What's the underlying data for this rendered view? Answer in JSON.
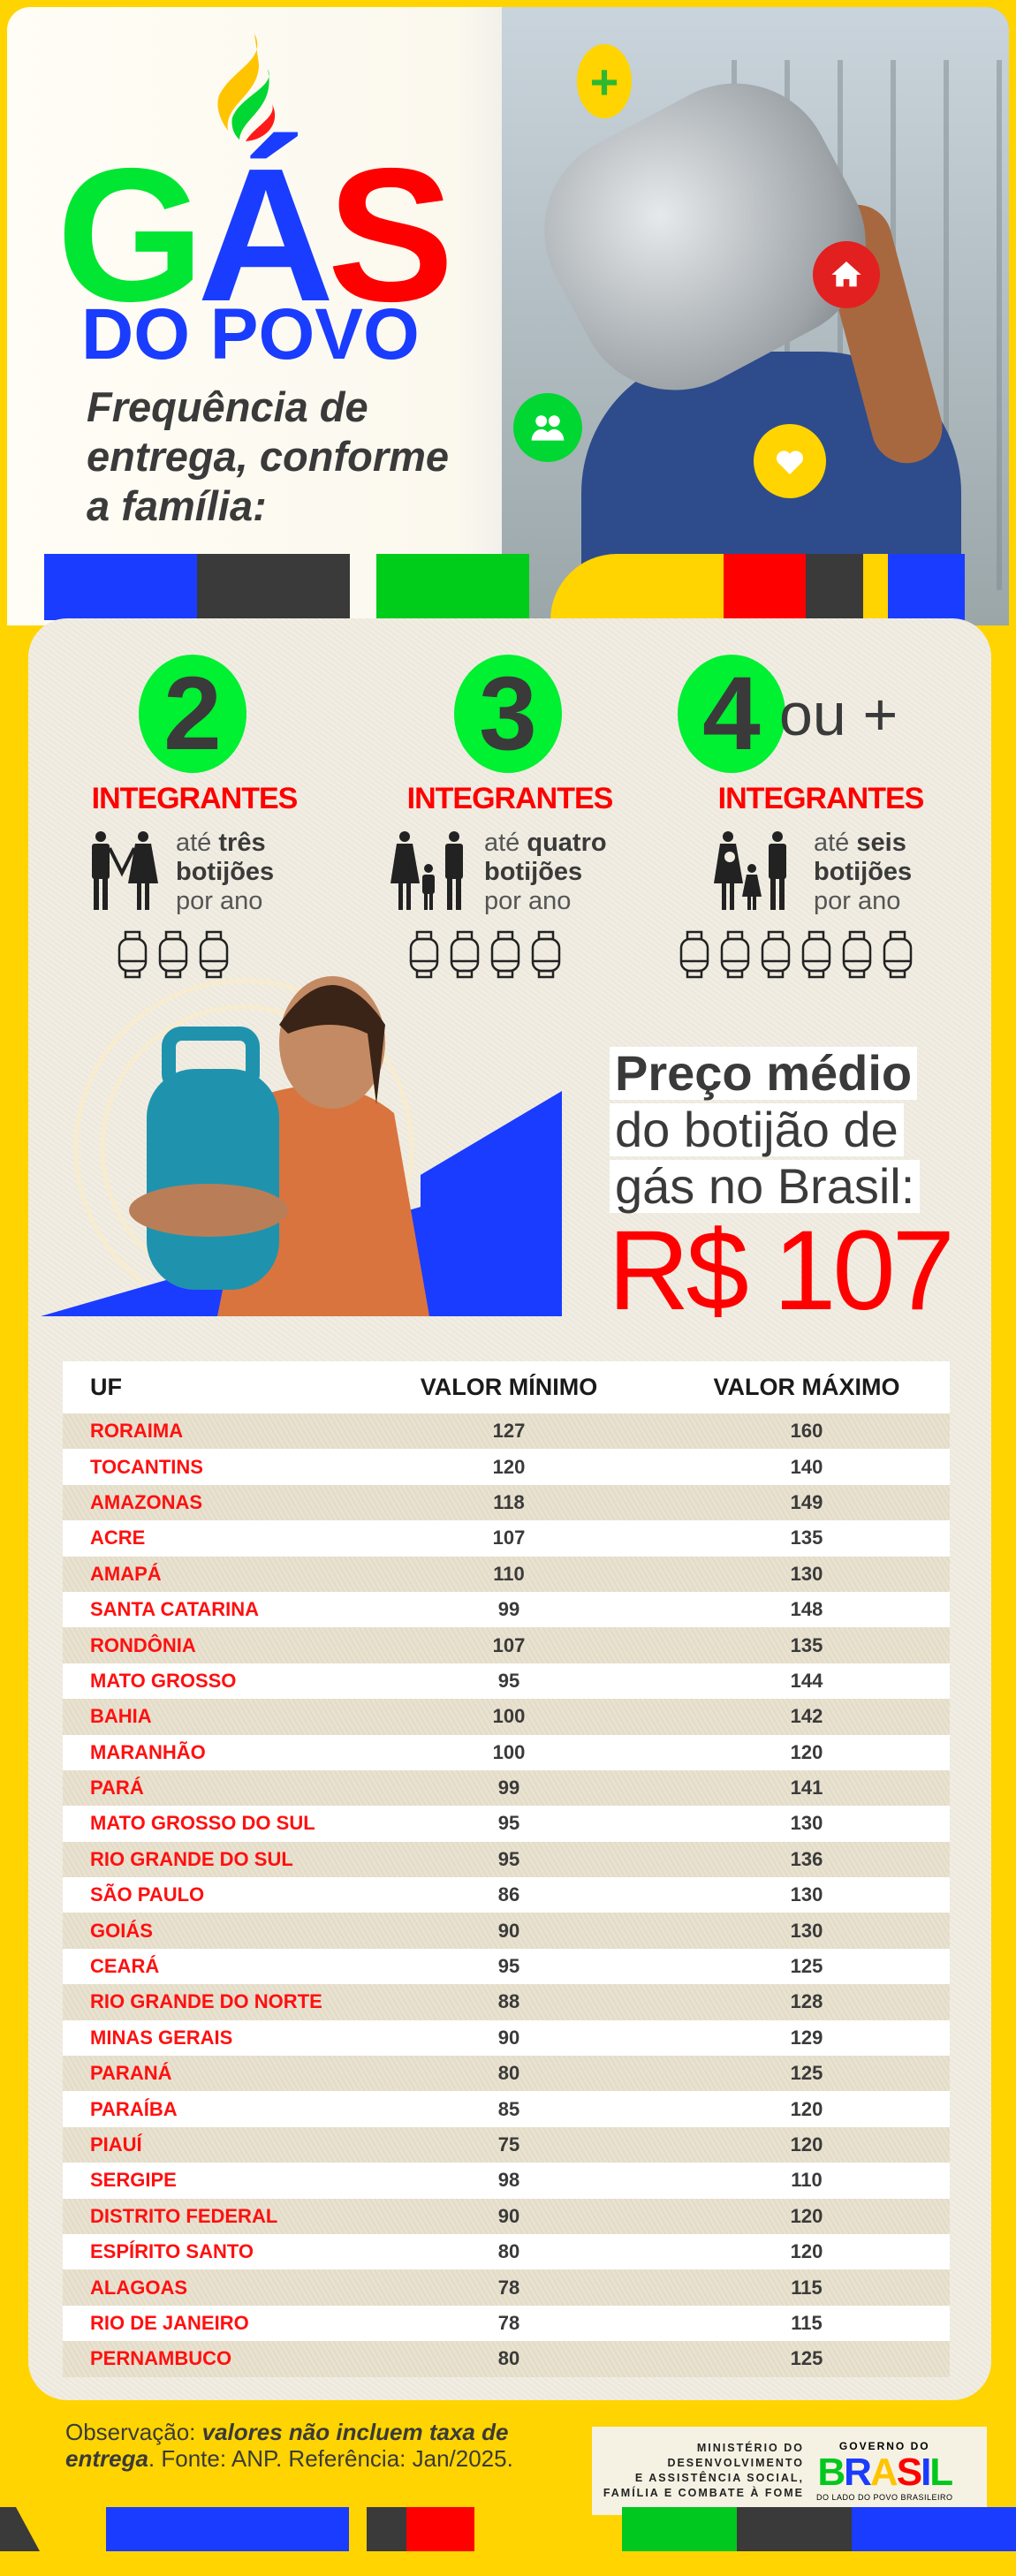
{
  "header": {
    "logo_gas": [
      "G",
      "Á",
      "S"
    ],
    "logo_dopovo": "DO POVO",
    "subtitle_lines": [
      "Frequência de",
      "entrega, conforme",
      "a família:"
    ],
    "badge_icons": [
      "plus-icon",
      "house-icon",
      "people-icon",
      "heart-icon"
    ]
  },
  "colors": {
    "green": "#00f032",
    "blue": "#1a3cff",
    "red": "#ff0000",
    "yellow": "#ffd400",
    "dark": "#3a3a3a"
  },
  "tiers": [
    {
      "number": "2",
      "suffix": "",
      "label": "INTEGRANTES",
      "text_pre": "até ",
      "text_bold": "três",
      "text_bold2": "botijões",
      "text_post": "por ano",
      "cylinders": 3
    },
    {
      "number": "3",
      "suffix": "",
      "label": "INTEGRANTES",
      "text_pre": "até ",
      "text_bold": "quatro",
      "text_bold2": "botijões",
      "text_post": "por ano",
      "cylinders": 4
    },
    {
      "number": "4",
      "suffix": "ou +",
      "label": "INTEGRANTES",
      "text_pre": "até ",
      "text_bold": "seis",
      "text_bold2": "botijões",
      "text_post": "por ano",
      "cylinders": 6
    }
  ],
  "price": {
    "lines": [
      "Preço médio",
      "do botijão de",
      "gás no Brasil:"
    ],
    "value": "R$ 107"
  },
  "table": {
    "headers": [
      "UF",
      "VALOR MÍNIMO",
      "VALOR MÁXIMO"
    ],
    "rows": [
      [
        "RORAIMA",
        "127",
        "160"
      ],
      [
        "TOCANTINS",
        "120",
        "140"
      ],
      [
        "AMAZONAS",
        "118",
        "149"
      ],
      [
        "ACRE",
        "107",
        "135"
      ],
      [
        "AMAPÁ",
        "110",
        "130"
      ],
      [
        "SANTA CATARINA",
        "99",
        "148"
      ],
      [
        "RONDÔNIA",
        "107",
        "135"
      ],
      [
        "MATO GROSSO",
        "95",
        "144"
      ],
      [
        "BAHIA",
        "100",
        "142"
      ],
      [
        "MARANHÃO",
        "100",
        "120"
      ],
      [
        "PARÁ",
        "99",
        "141"
      ],
      [
        "MATO GROSSO DO SUL",
        "95",
        "130"
      ],
      [
        "RIO GRANDE DO SUL",
        "95",
        "136"
      ],
      [
        "SÃO PAULO",
        "86",
        "130"
      ],
      [
        "GOIÁS",
        "90",
        "130"
      ],
      [
        "CEARÁ",
        "95",
        "125"
      ],
      [
        "RIO GRANDE DO NORTE",
        "88",
        "128"
      ],
      [
        "MINAS GERAIS",
        "90",
        "129"
      ],
      [
        "PARANÁ",
        "80",
        "125"
      ],
      [
        "PARAÍBA",
        "85",
        "120"
      ],
      [
        "PIAUÍ",
        "75",
        "120"
      ],
      [
        "SERGIPE",
        "98",
        "110"
      ],
      [
        "DISTRITO FEDERAL",
        "90",
        "120"
      ],
      [
        "ESPÍRITO SANTO",
        "80",
        "120"
      ],
      [
        "ALAGOAS",
        "78",
        "115"
      ],
      [
        "RIO DE JANEIRO",
        "78",
        "115"
      ],
      [
        "PERNAMBUCO",
        "80",
        "125"
      ]
    ]
  },
  "footnote": {
    "prefix": "Observação: ",
    "emph": "valores não incluem taxa de entrega",
    "suffix": ". Fonte: ANP. Referência: Jan/2025."
  },
  "footer": {
    "ministry_lines": [
      "MINISTÉRIO DO",
      "DESENVOLVIMENTO",
      "E ASSISTÊNCIA SOCIAL,",
      "FAMÍLIA E COMBATE À FOME"
    ],
    "gov_top": "GOVERNO DO",
    "gov_brasil": "BRASIL",
    "gov_tagline": "DO LADO DO POVO BRASILEIRO"
  }
}
